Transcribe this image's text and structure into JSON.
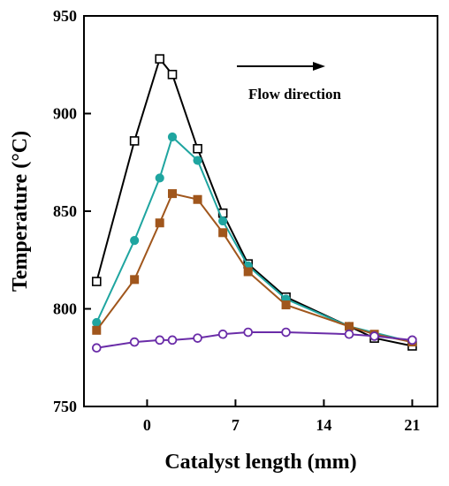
{
  "chart_data": {
    "type": "line",
    "xlabel": "Catalyst length (mm)",
    "ylabel": "Temperature (°C)",
    "xlim": [
      -5,
      23
    ],
    "ylim": [
      750,
      950
    ],
    "xticks": [
      0,
      7,
      14,
      21
    ],
    "yticks": [
      750,
      800,
      850,
      900,
      950
    ],
    "grid": false,
    "annotation": {
      "text": "Flow direction"
    },
    "colors": {
      "black": "#000000",
      "teal": "#1fa5a0",
      "brown": "#a0561c",
      "purple": "#6a2ca8"
    },
    "series": [
      {
        "marker": "open-square",
        "color": "#000000",
        "x": [
          -4,
          -1,
          1,
          2,
          4,
          6,
          8,
          11,
          18,
          21
        ],
        "y": [
          814,
          886,
          928,
          920,
          882,
          849,
          823,
          806,
          785,
          781
        ]
      },
      {
        "marker": "filled-circle",
        "color": "#1fa5a0",
        "x": [
          -4,
          -1,
          1,
          2,
          4,
          6,
          8,
          11,
          16,
          21
        ],
        "y": [
          793,
          835,
          867,
          888,
          876,
          845,
          822,
          805,
          791,
          783
        ]
      },
      {
        "marker": "filled-square",
        "color": "#a0561c",
        "x": [
          -4,
          -1,
          1,
          2,
          4,
          6,
          8,
          11,
          16,
          18,
          21
        ],
        "y": [
          789,
          815,
          844,
          859,
          856,
          839,
          819,
          802,
          791,
          787,
          783
        ]
      },
      {
        "marker": "open-circle",
        "color": "#6a2ca8",
        "x": [
          -4,
          -1,
          1,
          2,
          4,
          6,
          8,
          11,
          16,
          18,
          21
        ],
        "y": [
          780,
          783,
          784,
          784,
          785,
          787,
          788,
          788,
          787,
          786,
          784
        ]
      }
    ]
  }
}
